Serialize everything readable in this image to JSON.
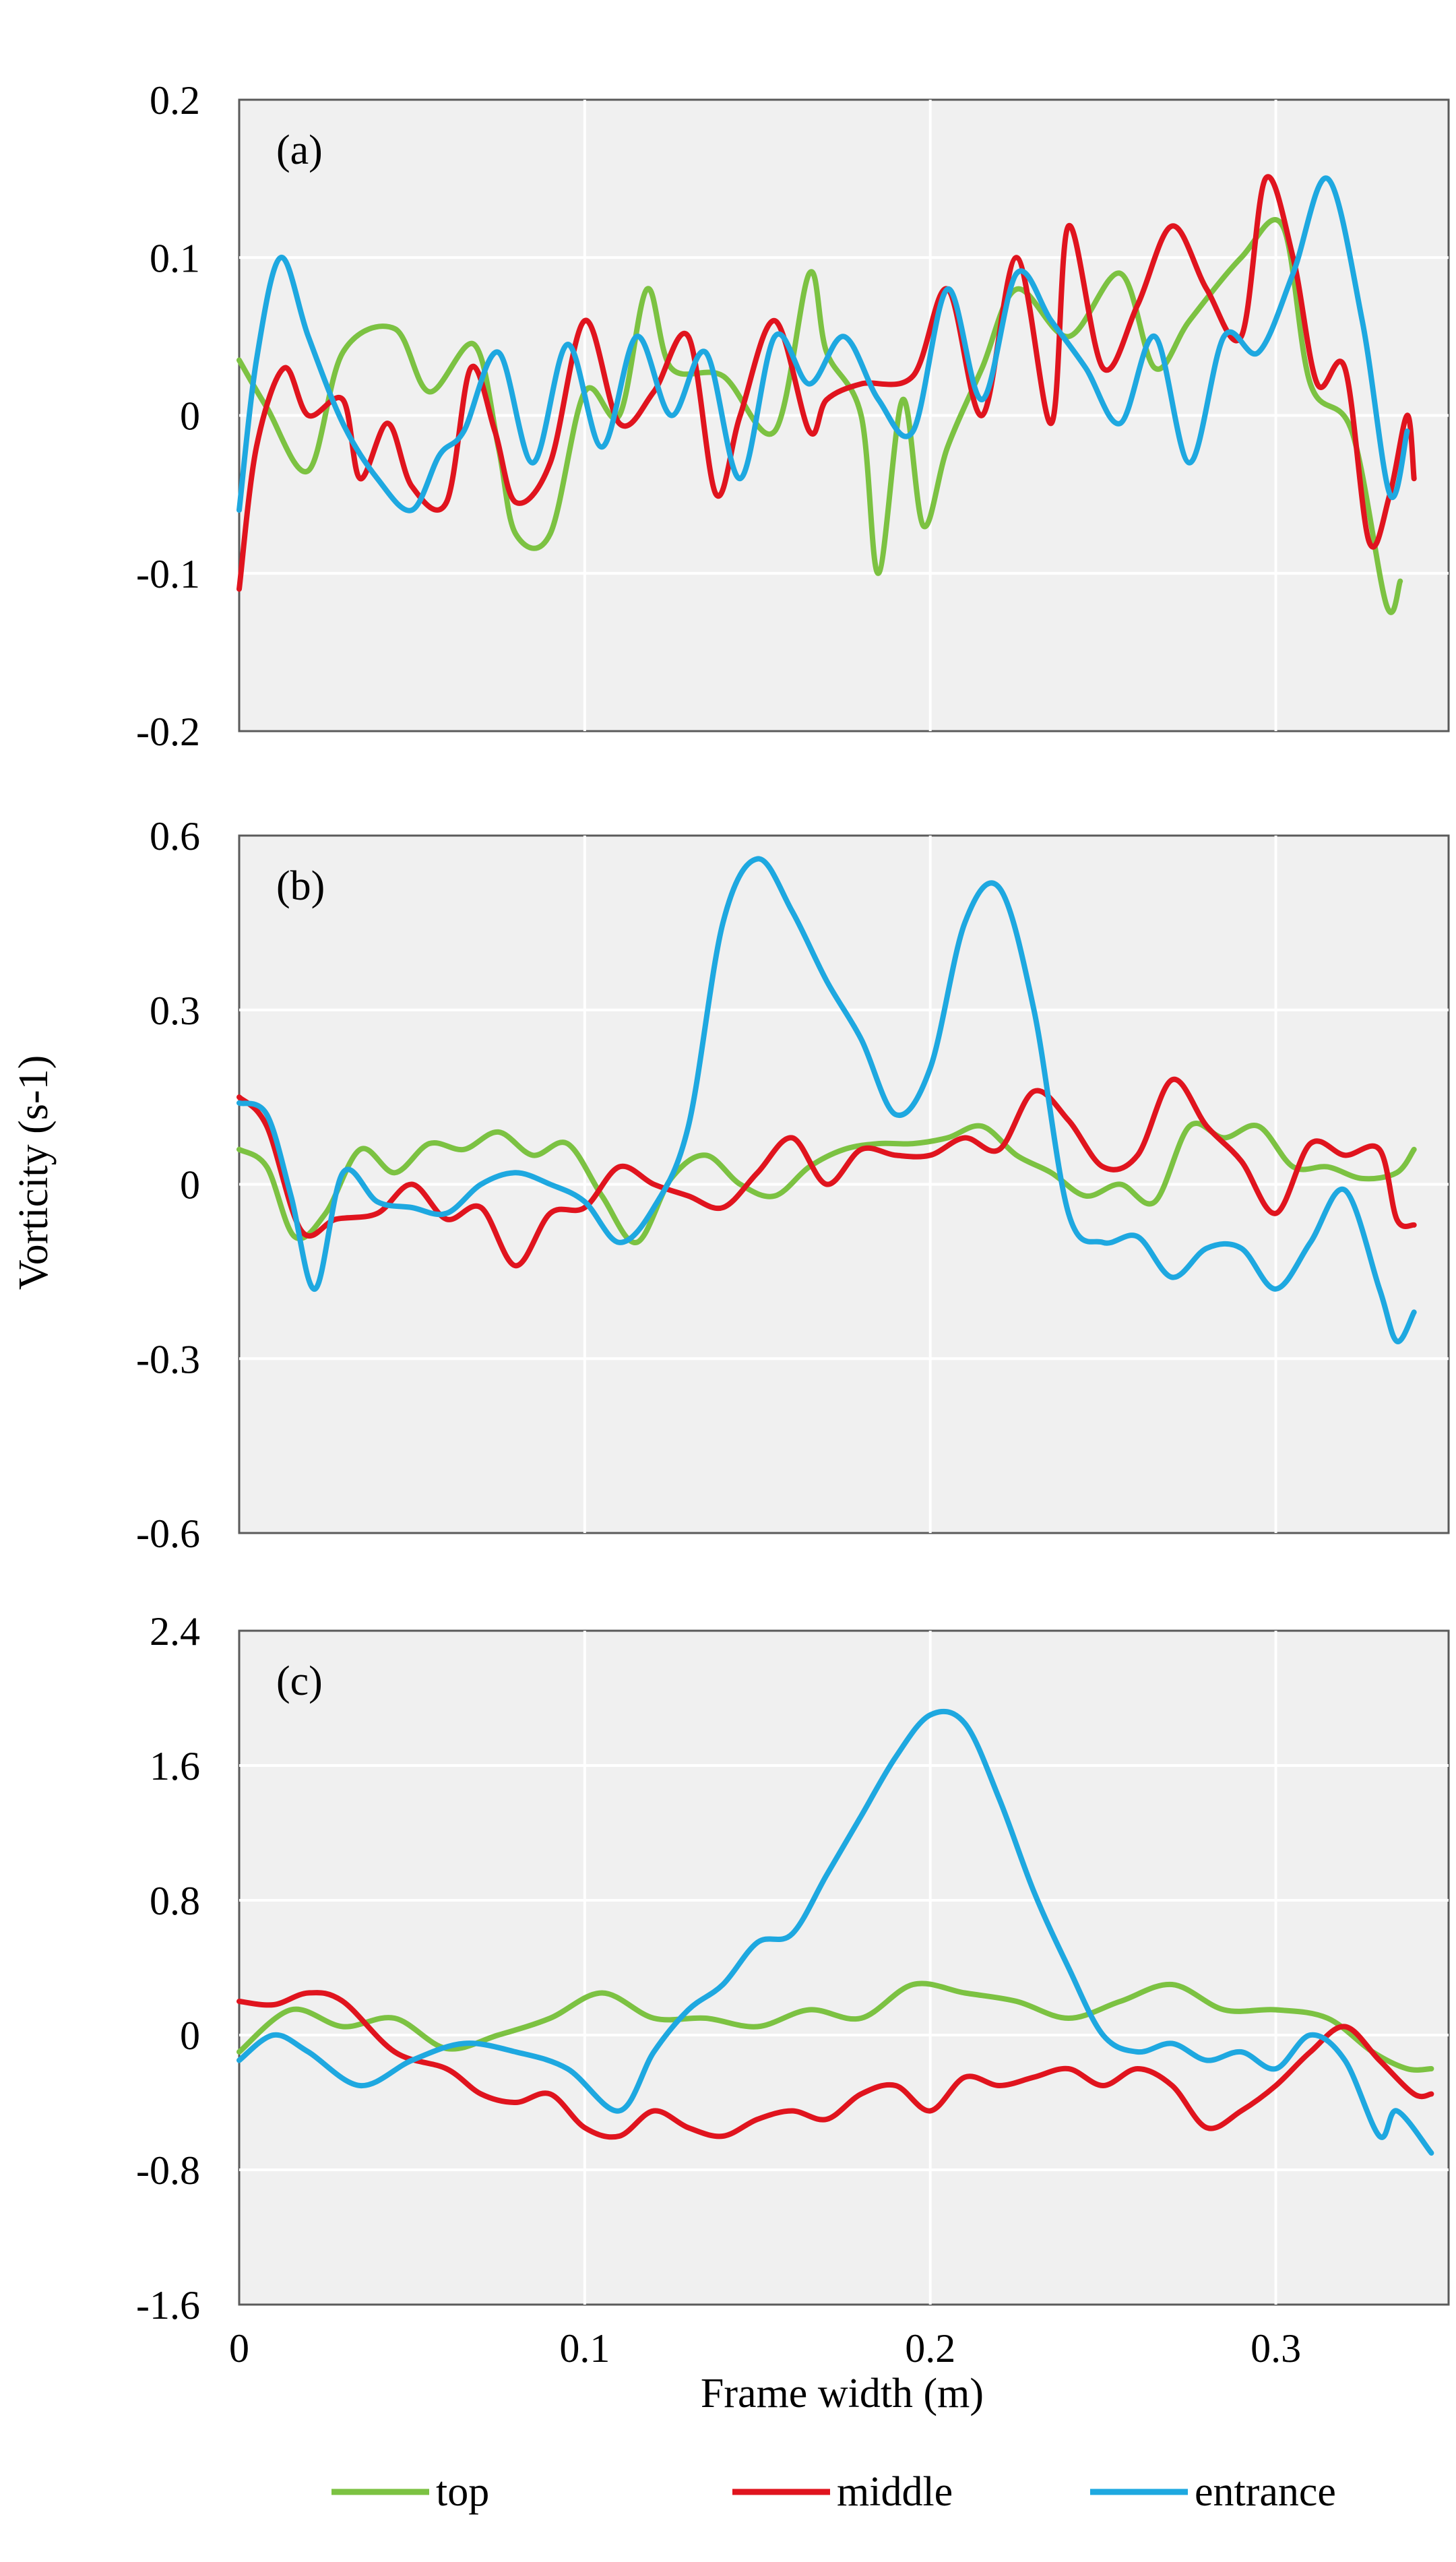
{
  "chart_data": {
    "type": "line",
    "xlabel": "Frame width (m)",
    "ylabel": "Vorticity (s-1)",
    "xlim": [
      0,
      0.35
    ],
    "x_ticks": [
      "0",
      "0.1",
      "0.2",
      "0.3"
    ],
    "x_tick_values": [
      0,
      0.1,
      0.2,
      0.3
    ],
    "legend_position": "bottom",
    "legend": [
      {
        "name": "top",
        "color": "#7cc242"
      },
      {
        "name": "middle",
        "color": "#e0141e"
      },
      {
        "name": "entrance",
        "color": "#1ea8e0"
      }
    ],
    "panels": [
      {
        "label": "(a)",
        "ylim": [
          -0.2,
          0.2
        ],
        "y_ticks": [
          "0.2",
          "0.1",
          "0",
          "-0.1",
          "-0.2"
        ],
        "y_tick_values": [
          0.2,
          0.1,
          0,
          -0.1,
          -0.2
        ],
        "series": [
          {
            "name": "top",
            "color": "#7cc242",
            "x": [
              0,
              0.008,
              0.02,
              0.03,
              0.045,
              0.055,
              0.068,
              0.075,
              0.08,
              0.09,
              0.1,
              0.11,
              0.118,
              0.125,
              0.14,
              0.155,
              0.165,
              0.17,
              0.18,
              0.185,
              0.192,
              0.198,
              0.205,
              0.215,
              0.225,
              0.24,
              0.255,
              0.265,
              0.275,
              0.29,
              0.302,
              0.31,
              0.322,
              0.332,
              0.336
            ],
            "y": [
              0.035,
              0.005,
              -0.035,
              0.04,
              0.055,
              0.015,
              0.045,
              -0.02,
              -0.075,
              -0.075,
              0.015,
              0.0,
              0.08,
              0.03,
              0.025,
              -0.01,
              0.09,
              0.04,
              0.0,
              -0.1,
              0.01,
              -0.07,
              -0.02,
              0.03,
              0.08,
              0.05,
              0.09,
              0.03,
              0.06,
              0.1,
              0.12,
              0.02,
              -0.01,
              -0.12,
              -0.105
            ]
          },
          {
            "name": "middle",
            "color": "#e0141e",
            "x": [
              0,
              0.005,
              0.013,
              0.02,
              0.03,
              0.035,
              0.043,
              0.05,
              0.06,
              0.067,
              0.074,
              0.08,
              0.09,
              0.1,
              0.11,
              0.12,
              0.13,
              0.138,
              0.145,
              0.155,
              0.165,
              0.17,
              0.18,
              0.195,
              0.205,
              0.215,
              0.225,
              0.235,
              0.24,
              0.25,
              0.26,
              0.27,
              0.28,
              0.29,
              0.297,
              0.305,
              0.312,
              0.32,
              0.327,
              0.333,
              0.338,
              0.34
            ],
            "y": [
              -0.11,
              -0.02,
              0.03,
              0.0,
              0.01,
              -0.04,
              -0.005,
              -0.045,
              -0.055,
              0.03,
              -0.01,
              -0.055,
              -0.03,
              0.06,
              -0.005,
              0.015,
              0.05,
              -0.05,
              0.0,
              0.06,
              -0.01,
              0.01,
              0.02,
              0.025,
              0.08,
              0.0,
              0.1,
              -0.005,
              0.12,
              0.03,
              0.07,
              0.12,
              0.08,
              0.05,
              0.15,
              0.1,
              0.02,
              0.03,
              -0.08,
              -0.05,
              0.0,
              -0.04
            ]
          },
          {
            "name": "entrance",
            "color": "#1ea8e0",
            "x": [
              0,
              0.005,
              0.012,
              0.02,
              0.03,
              0.04,
              0.05,
              0.058,
              0.065,
              0.075,
              0.085,
              0.095,
              0.105,
              0.115,
              0.125,
              0.135,
              0.145,
              0.155,
              0.165,
              0.175,
              0.185,
              0.195,
              0.205,
              0.215,
              0.225,
              0.235,
              0.245,
              0.255,
              0.265,
              0.275,
              0.285,
              0.295,
              0.305,
              0.315,
              0.325,
              0.333,
              0.338
            ],
            "y": [
              -0.06,
              0.035,
              0.1,
              0.05,
              -0.005,
              -0.04,
              -0.06,
              -0.025,
              -0.01,
              0.04,
              -0.03,
              0.045,
              -0.02,
              0.05,
              0.0,
              0.04,
              -0.04,
              0.05,
              0.02,
              0.05,
              0.01,
              -0.01,
              0.08,
              0.01,
              0.09,
              0.06,
              0.03,
              -0.005,
              0.05,
              -0.03,
              0.05,
              0.04,
              0.09,
              0.15,
              0.06,
              -0.05,
              -0.01
            ]
          }
        ]
      },
      {
        "label": "(b)",
        "ylim": [
          -0.6,
          0.6
        ],
        "y_ticks": [
          "0.6",
          "0.3",
          "0",
          "-0.3",
          "-0.6"
        ],
        "y_tick_values": [
          0.6,
          0.3,
          0,
          -0.3,
          -0.6
        ],
        "series": [
          {
            "name": "top",
            "color": "#7cc242",
            "x": [
              0,
              0.008,
              0.016,
              0.025,
              0.035,
              0.045,
              0.055,
              0.065,
              0.075,
              0.085,
              0.095,
              0.105,
              0.115,
              0.125,
              0.135,
              0.145,
              0.155,
              0.165,
              0.175,
              0.185,
              0.195,
              0.205,
              0.215,
              0.225,
              0.235,
              0.245,
              0.255,
              0.265,
              0.275,
              0.285,
              0.295,
              0.305,
              0.315,
              0.325,
              0.335,
              0.34
            ],
            "y": [
              0.06,
              0.03,
              -0.09,
              -0.05,
              0.06,
              0.02,
              0.07,
              0.06,
              0.09,
              0.05,
              0.07,
              -0.02,
              -0.1,
              0.01,
              0.05,
              0.0,
              -0.02,
              0.03,
              0.06,
              0.07,
              0.07,
              0.08,
              0.1,
              0.05,
              0.02,
              -0.02,
              0.0,
              -0.03,
              0.1,
              0.08,
              0.1,
              0.03,
              0.03,
              0.01,
              0.02,
              0.06
            ]
          },
          {
            "name": "middle",
            "color": "#e0141e",
            "x": [
              0,
              0.008,
              0.018,
              0.028,
              0.04,
              0.05,
              0.06,
              0.07,
              0.08,
              0.09,
              0.1,
              0.11,
              0.12,
              0.13,
              0.14,
              0.15,
              0.16,
              0.17,
              0.18,
              0.19,
              0.2,
              0.21,
              0.22,
              0.23,
              0.24,
              0.25,
              0.26,
              0.27,
              0.28,
              0.29,
              0.3,
              0.31,
              0.32,
              0.33,
              0.335,
              0.34
            ],
            "y": [
              0.15,
              0.1,
              -0.08,
              -0.06,
              -0.05,
              0.0,
              -0.06,
              -0.04,
              -0.14,
              -0.05,
              -0.04,
              0.03,
              0.0,
              -0.02,
              -0.04,
              0.02,
              0.08,
              0.0,
              0.06,
              0.05,
              0.05,
              0.08,
              0.06,
              0.16,
              0.11,
              0.03,
              0.05,
              0.18,
              0.1,
              0.04,
              -0.05,
              0.07,
              0.05,
              0.06,
              -0.06,
              -0.07
            ]
          },
          {
            "name": "entrance",
            "color": "#1ea8e0",
            "x": [
              0,
              0.008,
              0.015,
              0.022,
              0.03,
              0.04,
              0.05,
              0.06,
              0.07,
              0.08,
              0.09,
              0.1,
              0.11,
              0.12,
              0.13,
              0.14,
              0.15,
              0.16,
              0.17,
              0.18,
              0.19,
              0.2,
              0.21,
              0.22,
              0.23,
              0.24,
              0.25,
              0.26,
              0.27,
              0.28,
              0.29,
              0.3,
              0.31,
              0.32,
              0.33,
              0.335,
              0.34
            ],
            "y": [
              0.14,
              0.12,
              -0.02,
              -0.18,
              0.02,
              -0.03,
              -0.04,
              -0.05,
              0.0,
              0.02,
              0.0,
              -0.03,
              -0.1,
              -0.04,
              0.1,
              0.45,
              0.56,
              0.47,
              0.35,
              0.25,
              0.12,
              0.2,
              0.45,
              0.51,
              0.3,
              -0.05,
              -0.1,
              -0.09,
              -0.16,
              -0.11,
              -0.11,
              -0.18,
              -0.1,
              -0.01,
              -0.18,
              -0.27,
              -0.22
            ]
          }
        ]
      },
      {
        "label": "(c)",
        "ylim": [
          -1.6,
          2.4
        ],
        "y_ticks": [
          "2.4",
          "1.6",
          "0.8",
          "0",
          "-0.8",
          "-1.6"
        ],
        "y_tick_values": [
          2.4,
          1.6,
          0.8,
          0,
          -0.8,
          -1.6
        ],
        "series": [
          {
            "name": "top",
            "color": "#7cc242",
            "x": [
              0,
              0.015,
              0.03,
              0.045,
              0.06,
              0.075,
              0.09,
              0.105,
              0.12,
              0.135,
              0.15,
              0.165,
              0.18,
              0.195,
              0.21,
              0.225,
              0.24,
              0.255,
              0.27,
              0.285,
              0.3,
              0.315,
              0.328,
              0.338,
              0.345
            ],
            "y": [
              -0.1,
              0.15,
              0.05,
              0.1,
              -0.08,
              0.0,
              0.1,
              0.25,
              0.1,
              0.1,
              0.05,
              0.15,
              0.1,
              0.3,
              0.25,
              0.2,
              0.1,
              0.2,
              0.3,
              0.15,
              0.15,
              0.1,
              -0.1,
              -0.2,
              -0.2
            ]
          },
          {
            "name": "middle",
            "color": "#e0141e",
            "x": [
              0,
              0.01,
              0.02,
              0.03,
              0.045,
              0.06,
              0.07,
              0.08,
              0.09,
              0.1,
              0.11,
              0.12,
              0.13,
              0.14,
              0.15,
              0.16,
              0.17,
              0.18,
              0.19,
              0.2,
              0.21,
              0.22,
              0.23,
              0.24,
              0.25,
              0.26,
              0.27,
              0.28,
              0.29,
              0.3,
              0.31,
              0.32,
              0.33,
              0.34,
              0.345
            ],
            "y": [
              0.2,
              0.18,
              0.25,
              0.2,
              -0.1,
              -0.2,
              -0.35,
              -0.4,
              -0.35,
              -0.55,
              -0.6,
              -0.45,
              -0.55,
              -0.6,
              -0.5,
              -0.45,
              -0.5,
              -0.35,
              -0.3,
              -0.45,
              -0.25,
              -0.3,
              -0.25,
              -0.2,
              -0.3,
              -0.2,
              -0.3,
              -0.55,
              -0.45,
              -0.3,
              -0.1,
              0.05,
              -0.15,
              -0.35,
              -0.35
            ]
          },
          {
            "name": "entrance",
            "color": "#1ea8e0",
            "x": [
              0,
              0.01,
              0.02,
              0.035,
              0.05,
              0.065,
              0.08,
              0.095,
              0.11,
              0.12,
              0.13,
              0.14,
              0.15,
              0.16,
              0.17,
              0.18,
              0.19,
              0.2,
              0.21,
              0.22,
              0.23,
              0.24,
              0.25,
              0.26,
              0.27,
              0.28,
              0.29,
              0.3,
              0.31,
              0.32,
              0.33,
              0.335,
              0.345
            ],
            "y": [
              -0.15,
              0.0,
              -0.1,
              -0.3,
              -0.15,
              -0.05,
              -0.1,
              -0.2,
              -0.45,
              -0.1,
              0.15,
              0.3,
              0.55,
              0.6,
              0.95,
              1.3,
              1.65,
              1.9,
              1.85,
              1.4,
              0.85,
              0.4,
              0.0,
              -0.1,
              -0.05,
              -0.15,
              -0.1,
              -0.2,
              0.0,
              -0.15,
              -0.6,
              -0.45,
              -0.7
            ]
          }
        ]
      }
    ]
  }
}
